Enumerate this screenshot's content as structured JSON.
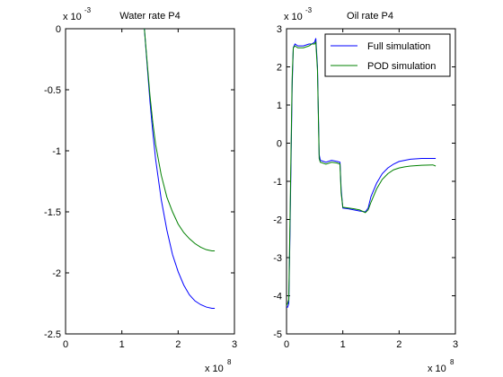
{
  "chart_data": [
    {
      "type": "line",
      "title": "Water rate P4",
      "xlabel": "",
      "ylabel": "",
      "x_exponent_label": "x 10",
      "x_exponent": "8",
      "y_exponent_label": "x 10",
      "y_exponent": "-3",
      "xlim": [
        0,
        3
      ],
      "ylim": [
        -2.5,
        0
      ],
      "xticks": [
        0,
        1,
        2,
        3
      ],
      "xtick_labels": [
        "0",
        "1",
        "2",
        "3"
      ],
      "yticks": [
        0,
        -0.5,
        -1,
        -1.5,
        -2,
        -2.5
      ],
      "ytick_labels": [
        "0",
        "-0.5",
        "-1",
        "-1.5",
        "-2",
        "-2.5"
      ],
      "grid": false,
      "series": [
        {
          "color": "#0000ff",
          "x": [
            1.4,
            1.45,
            1.5,
            1.55,
            1.6,
            1.7,
            1.8,
            1.9,
            2.0,
            2.1,
            2.2,
            2.3,
            2.4,
            2.5,
            2.6,
            2.65
          ],
          "values": [
            0,
            -0.3,
            -0.6,
            -0.85,
            -1.07,
            -1.4,
            -1.65,
            -1.85,
            -1.99,
            -2.1,
            -2.18,
            -2.23,
            -2.26,
            -2.28,
            -2.29,
            -2.29
          ]
        },
        {
          "color": "#008000",
          "x": [
            1.4,
            1.45,
            1.5,
            1.55,
            1.6,
            1.7,
            1.8,
            1.9,
            2.0,
            2.1,
            2.2,
            2.3,
            2.4,
            2.5,
            2.6,
            2.65
          ],
          "values": [
            0,
            -0.28,
            -0.55,
            -0.77,
            -0.95,
            -1.2,
            -1.38,
            -1.5,
            -1.6,
            -1.67,
            -1.72,
            -1.76,
            -1.79,
            -1.81,
            -1.82,
            -1.82
          ]
        }
      ]
    },
    {
      "type": "line",
      "title": "Oil rate P4",
      "xlabel": "",
      "ylabel": "",
      "x_exponent_label": "x 10",
      "x_exponent": "8",
      "y_exponent_label": "x 10",
      "y_exponent": "-3",
      "xlim": [
        0,
        3
      ],
      "ylim": [
        -5,
        3
      ],
      "xticks": [
        0,
        1,
        2,
        3
      ],
      "xtick_labels": [
        "0",
        "1",
        "2",
        "3"
      ],
      "yticks": [
        3,
        2,
        1,
        0,
        -1,
        -2,
        -3,
        -4,
        -5
      ],
      "ytick_labels": [
        "3",
        "2",
        "1",
        "0",
        "-1",
        "-2",
        "-3",
        "-4",
        "-5"
      ],
      "grid": false,
      "legend_position": "top-right",
      "series": [
        {
          "name": "Full simulation",
          "color": "#0000ff",
          "x": [
            0,
            0.02,
            0.04,
            0.06,
            0.08,
            0.1,
            0.12,
            0.15,
            0.2,
            0.3,
            0.4,
            0.45,
            0.5,
            0.52,
            0.55,
            0.58,
            0.6,
            0.7,
            0.8,
            0.9,
            0.95,
            0.97,
            1.0,
            1.1,
            1.2,
            1.3,
            1.4,
            1.45,
            1.5,
            1.6,
            1.7,
            1.8,
            1.9,
            2.0,
            2.1,
            2.2,
            2.4,
            2.6,
            2.65
          ],
          "values": [
            -4.3,
            -4.3,
            -4.2,
            -2.5,
            -0.5,
            1.5,
            2.5,
            2.6,
            2.55,
            2.55,
            2.6,
            2.6,
            2.65,
            2.75,
            2.0,
            -0.3,
            -0.45,
            -0.5,
            -0.45,
            -0.48,
            -0.5,
            -1.2,
            -1.7,
            -1.72,
            -1.75,
            -1.78,
            -1.8,
            -1.7,
            -1.4,
            -1.05,
            -0.8,
            -0.65,
            -0.55,
            -0.48,
            -0.45,
            -0.42,
            -0.4,
            -0.4,
            -0.4
          ]
        },
        {
          "name": "POD simulation",
          "color": "#008000",
          "x": [
            0,
            0.02,
            0.04,
            0.06,
            0.08,
            0.1,
            0.12,
            0.15,
            0.2,
            0.3,
            0.4,
            0.45,
            0.5,
            0.52,
            0.55,
            0.58,
            0.6,
            0.7,
            0.8,
            0.9,
            0.95,
            0.97,
            1.0,
            1.1,
            1.2,
            1.3,
            1.4,
            1.45,
            1.5,
            1.6,
            1.7,
            1.8,
            1.9,
            2.0,
            2.1,
            2.2,
            2.4,
            2.6,
            2.65
          ],
          "values": [
            -4.25,
            -4.2,
            -4.1,
            -2.2,
            -0.2,
            1.7,
            2.5,
            2.55,
            2.5,
            2.5,
            2.55,
            2.6,
            2.6,
            2.65,
            1.9,
            -0.4,
            -0.5,
            -0.55,
            -0.5,
            -0.52,
            -0.55,
            -1.3,
            -1.68,
            -1.7,
            -1.72,
            -1.75,
            -1.82,
            -1.75,
            -1.55,
            -1.2,
            -0.95,
            -0.8,
            -0.7,
            -0.65,
            -0.62,
            -0.6,
            -0.58,
            -0.57,
            -0.6
          ]
        }
      ]
    }
  ]
}
